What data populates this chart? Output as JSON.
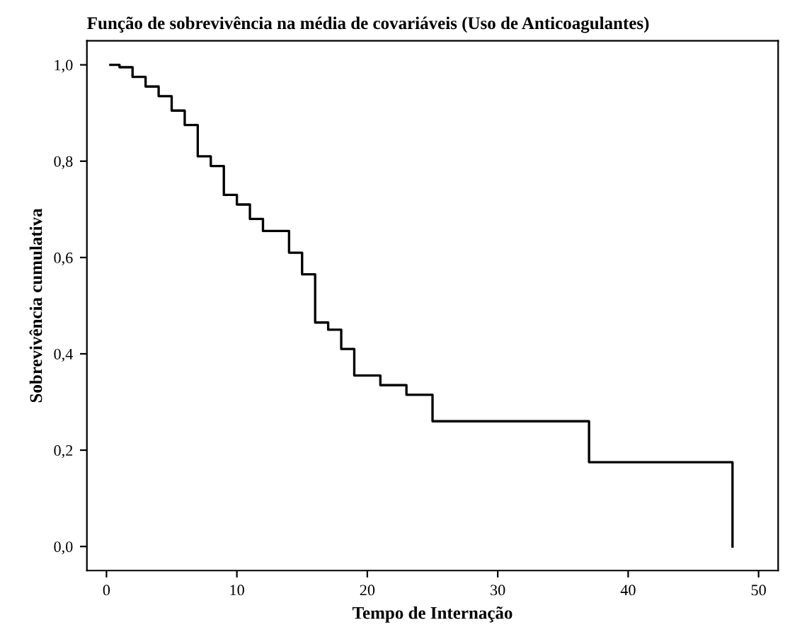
{
  "chart_data": {
    "type": "step",
    "title": "Função de sobrevivência na média de covariáveis (Uso de Anticoagulantes)",
    "xlabel": "Tempo de Internação",
    "ylabel": "Sobrevivência cumulativa",
    "series": [
      {
        "color": "#000000",
        "x": [
          0.3,
          1,
          2,
          3,
          4,
          5,
          6,
          7,
          8,
          9,
          10,
          11,
          12,
          14,
          15,
          16,
          17,
          18,
          19,
          21,
          23,
          25,
          37,
          48,
          48
        ],
        "values": [
          1.0,
          0.995,
          0.975,
          0.955,
          0.935,
          0.905,
          0.875,
          0.81,
          0.79,
          0.73,
          0.71,
          0.68,
          0.655,
          0.61,
          0.565,
          0.465,
          0.45,
          0.41,
          0.355,
          0.335,
          0.315,
          0.26,
          0.175,
          0.175,
          0.0
        ]
      }
    ],
    "xlim": [
      -1.5,
      51.5
    ],
    "ylim": [
      -0.05,
      1.05
    ],
    "xticks": [
      0,
      10,
      20,
      30,
      40,
      50
    ],
    "yticks": [
      {
        "value": 0,
        "label": "0,0"
      },
      {
        "value": 0.2,
        "label": "0,2"
      },
      {
        "value": 0.4,
        "label": "0,4"
      },
      {
        "value": 0.6,
        "label": "0,6"
      },
      {
        "value": 0.8,
        "label": "0,8"
      },
      {
        "value": 1.0,
        "label": "1,0"
      }
    ],
    "grid": false,
    "legend": false
  }
}
